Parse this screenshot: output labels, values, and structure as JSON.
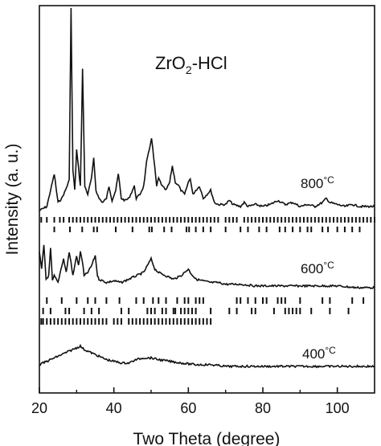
{
  "chart_data": {
    "type": "line",
    "title": "ZrO",
    "title_sub": "2",
    "title_suffix": "-HCl",
    "xlabel": "Two Theta (degree)",
    "ylabel": "Intensity (a. u.)",
    "xlim": [
      20,
      110
    ],
    "xticks": [
      20,
      40,
      60,
      80,
      100
    ],
    "grid": false,
    "series": [
      {
        "name": "800°C",
        "label_main": "800",
        "label_unit": "°C",
        "baseline": 0.0,
        "points": [
          [
            20,
            0
          ],
          [
            22,
            2
          ],
          [
            24,
            18
          ],
          [
            25,
            4
          ],
          [
            26,
            6
          ],
          [
            27,
            10
          ],
          [
            28,
            15
          ],
          [
            28.5,
            100
          ],
          [
            29,
            20
          ],
          [
            29.5,
            10
          ],
          [
            30,
            30
          ],
          [
            31,
            12
          ],
          [
            31.6,
            70
          ],
          [
            32.2,
            12
          ],
          [
            33,
            8
          ],
          [
            34,
            16
          ],
          [
            34.6,
            26
          ],
          [
            35.2,
            10
          ],
          [
            36,
            6
          ],
          [
            37,
            4
          ],
          [
            38,
            6
          ],
          [
            38.7,
            12
          ],
          [
            39.5,
            5
          ],
          [
            40.5,
            10
          ],
          [
            41.2,
            18
          ],
          [
            42,
            6
          ],
          [
            43,
            5
          ],
          [
            44,
            6
          ],
          [
            45,
            10
          ],
          [
            45.5,
            12
          ],
          [
            46,
            6
          ],
          [
            47,
            8
          ],
          [
            48,
            12
          ],
          [
            48.8,
            24
          ],
          [
            49.5,
            30
          ],
          [
            50.1,
            36
          ],
          [
            50.7,
            26
          ],
          [
            51.5,
            12
          ],
          [
            52,
            16
          ],
          [
            53,
            12
          ],
          [
            54,
            10
          ],
          [
            55,
            14
          ],
          [
            55.7,
            22
          ],
          [
            56.5,
            14
          ],
          [
            57.5,
            12
          ],
          [
            58,
            10
          ],
          [
            59,
            8
          ],
          [
            60,
            14
          ],
          [
            60.5,
            16
          ],
          [
            61.2,
            8
          ],
          [
            62,
            10
          ],
          [
            63,
            12
          ],
          [
            64,
            6
          ],
          [
            65,
            8
          ],
          [
            66,
            10
          ],
          [
            67,
            4
          ],
          [
            68,
            3
          ],
          [
            70,
            3
          ],
          [
            71,
            5
          ],
          [
            72,
            3
          ],
          [
            74,
            2
          ],
          [
            75,
            4
          ],
          [
            76,
            2
          ],
          [
            78,
            3
          ],
          [
            80,
            2
          ],
          [
            82,
            3
          ],
          [
            84,
            5
          ],
          [
            86,
            3
          ],
          [
            88,
            4
          ],
          [
            90,
            2
          ],
          [
            92,
            3
          ],
          [
            94,
            2
          ],
          [
            96,
            4
          ],
          [
            97,
            6
          ],
          [
            98,
            4
          ],
          [
            100,
            3
          ],
          [
            102,
            2
          ],
          [
            104,
            3
          ],
          [
            106,
            2
          ],
          [
            108,
            2
          ],
          [
            110,
            2
          ]
        ]
      },
      {
        "name": "600°C",
        "label_main": "600",
        "label_unit": "°C",
        "baseline": 0.0,
        "points": [
          [
            20,
            22
          ],
          [
            20.6,
            12
          ],
          [
            21.2,
            26
          ],
          [
            21.8,
            6
          ],
          [
            22.5,
            8
          ],
          [
            23,
            24
          ],
          [
            23.5,
            5
          ],
          [
            24,
            8
          ],
          [
            25,
            4
          ],
          [
            26,
            14
          ],
          [
            26.5,
            18
          ],
          [
            27.2,
            10
          ],
          [
            28,
            22
          ],
          [
            28.5,
            16
          ],
          [
            29,
            8
          ],
          [
            30,
            20
          ],
          [
            30.5,
            14
          ],
          [
            31,
            22
          ],
          [
            31.6,
            16
          ],
          [
            32,
            8
          ],
          [
            33,
            10
          ],
          [
            34,
            14
          ],
          [
            35,
            20
          ],
          [
            35.6,
            8
          ],
          [
            36,
            6
          ],
          [
            38,
            4
          ],
          [
            40,
            5
          ],
          [
            42,
            4
          ],
          [
            44,
            6
          ],
          [
            46,
            8
          ],
          [
            48,
            10
          ],
          [
            49,
            14
          ],
          [
            50,
            18
          ],
          [
            51,
            12
          ],
          [
            52,
            10
          ],
          [
            54,
            8
          ],
          [
            56,
            6
          ],
          [
            58,
            8
          ],
          [
            60,
            12
          ],
          [
            60.5,
            10
          ],
          [
            62,
            6
          ],
          [
            64,
            5
          ],
          [
            66,
            4
          ],
          [
            68,
            4
          ],
          [
            70,
            3
          ],
          [
            74,
            3
          ],
          [
            78,
            2
          ],
          [
            82,
            2
          ],
          [
            86,
            2
          ],
          [
            90,
            2
          ],
          [
            95,
            2
          ],
          [
            100,
            2
          ],
          [
            105,
            1
          ],
          [
            110,
            1
          ]
        ]
      },
      {
        "name": "400°C",
        "label_main": "400",
        "label_unit": "°C",
        "baseline": 0.0,
        "points": [
          [
            20,
            2
          ],
          [
            22,
            4
          ],
          [
            24,
            6
          ],
          [
            26,
            8
          ],
          [
            28,
            10
          ],
          [
            30,
            12
          ],
          [
            31,
            13
          ],
          [
            32,
            11
          ],
          [
            34,
            9
          ],
          [
            36,
            7
          ],
          [
            38,
            5
          ],
          [
            40,
            4
          ],
          [
            42,
            3
          ],
          [
            44,
            3
          ],
          [
            46,
            5
          ],
          [
            48,
            6
          ],
          [
            50,
            6
          ],
          [
            52,
            5
          ],
          [
            55,
            4
          ],
          [
            58,
            3
          ],
          [
            62,
            2
          ],
          [
            66,
            2
          ],
          [
            70,
            1
          ],
          [
            75,
            1
          ],
          [
            80,
            1
          ],
          [
            90,
            1
          ],
          [
            100,
            1
          ],
          [
            110,
            1
          ]
        ]
      }
    ],
    "reference_marks": {
      "800_row1": [
        20.5,
        22,
        24,
        25.5,
        26.5,
        28,
        29,
        30,
        31,
        32,
        33,
        34,
        35,
        36,
        37,
        38,
        39,
        40,
        41,
        42,
        43,
        44,
        45,
        46,
        47,
        48,
        49,
        50,
        51,
        52,
        53,
        54,
        55,
        56,
        57,
        58,
        59,
        60,
        61,
        62,
        63,
        64,
        65,
        66,
        67,
        68,
        70,
        71,
        72,
        73,
        75,
        76,
        77,
        78,
        79,
        80,
        81,
        82,
        83,
        84,
        85,
        86,
        87,
        88,
        89,
        90,
        91,
        92,
        93,
        94,
        95,
        96,
        97,
        98,
        99,
        100,
        101,
        102,
        103,
        104,
        105,
        106,
        107,
        108,
        109,
        110
      ],
      "800_row2": [
        24,
        28.2,
        31.5,
        34.6,
        35.5,
        40.5,
        45,
        49.5,
        50.2,
        53.5,
        55.5,
        59.5,
        60.2,
        62,
        64,
        66,
        70,
        74,
        76,
        79,
        81,
        84.5,
        86,
        88,
        90,
        92,
        93,
        96,
        97.5,
        100,
        102,
        104,
        106
      ],
      "600_row1": [
        22,
        26,
        30,
        33,
        35,
        38,
        41.5,
        46,
        48,
        50.5,
        52,
        54,
        57,
        59,
        60,
        62,
        63,
        64,
        73,
        74,
        76,
        78,
        80,
        81,
        84,
        85,
        86,
        90,
        96,
        98,
        104,
        107
      ],
      "600_row2": [
        21,
        23,
        27,
        28,
        32,
        34,
        36,
        42,
        44,
        49,
        50,
        51,
        53,
        54,
        56,
        56.5,
        58,
        59,
        60,
        61,
        62,
        66,
        71,
        73,
        77,
        78,
        83,
        86,
        87,
        88,
        89,
        90,
        93,
        98,
        103
      ],
      "600_row3": [
        20.5,
        21,
        22,
        23,
        24,
        25,
        26,
        27,
        28,
        29,
        30,
        31,
        32,
        33,
        34,
        35,
        36,
        37,
        38,
        40,
        41,
        42,
        44,
        45,
        46,
        47,
        48,
        49,
        50,
        51,
        52,
        53,
        54,
        55,
        56,
        57,
        58,
        59,
        60,
        61,
        62,
        63,
        64,
        65,
        66
      ]
    }
  }
}
